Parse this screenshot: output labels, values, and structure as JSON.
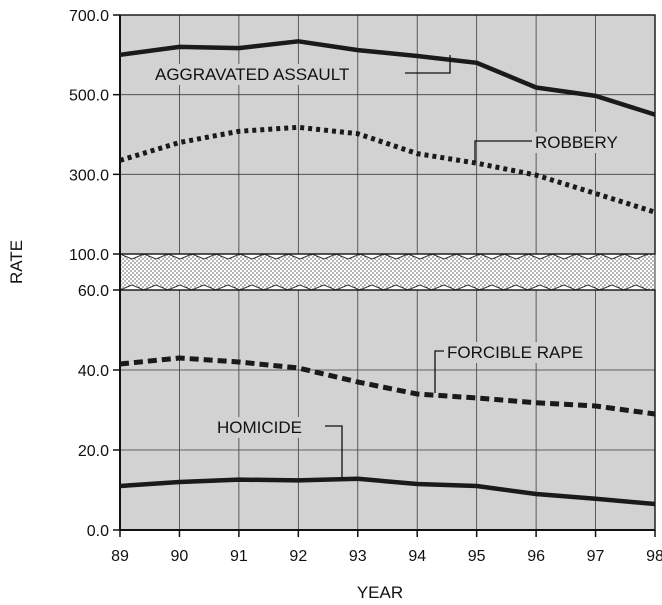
{
  "chart_data": {
    "type": "line",
    "xlabel": "YEAR",
    "ylabel": "RATE",
    "x": [
      "89",
      "90",
      "91",
      "92",
      "93",
      "94",
      "95",
      "96",
      "97",
      "98"
    ],
    "x_numeric": [
      89,
      90,
      91,
      92,
      93,
      94,
      95,
      96,
      97,
      98
    ],
    "grid": true,
    "background_color": "#d2d2d2",
    "line_color": "#1a1a1a",
    "panels": [
      {
        "name": "upper",
        "ylim": [
          100,
          700
        ],
        "yticks": [
          100,
          300,
          500,
          700
        ],
        "ytick_labels": [
          "100.0",
          "300.0",
          "500.0",
          "700.0"
        ],
        "series": [
          {
            "name": "AGGRAVATED ASSAULT",
            "style": "solid",
            "x": [
              89,
              90,
              91,
              92,
              93,
              94,
              95,
              96,
              97,
              98
            ],
            "values": [
              600,
              620,
              617,
              634,
              612,
              597,
              580,
              518,
              497,
              450
            ]
          },
          {
            "name": "ROBBERY",
            "style": "dotted",
            "x": [
              89,
              90,
              91,
              92,
              93,
              94,
              95,
              96,
              97,
              98
            ],
            "values": [
              335,
              380,
              408,
              418,
              402,
              352,
              328,
              298,
              252,
              205
            ]
          }
        ]
      },
      {
        "name": "lower",
        "ylim": [
          0,
          60
        ],
        "yticks": [
          0,
          20,
          40,
          60
        ],
        "ytick_labels": [
          "0.0",
          "20.0",
          "40.0",
          "60.0"
        ],
        "series": [
          {
            "name": "FORCIBLE RAPE",
            "style": "dashed",
            "x": [
              89,
              90,
              91,
              92,
              93,
              94,
              95,
              96,
              97,
              98
            ],
            "values": [
              41.5,
              43,
              42,
              40.5,
              37,
              34,
              33,
              31.8,
              31,
              29
            ]
          },
          {
            "name": "HOMICIDE",
            "style": "solid",
            "x": [
              89,
              90,
              91,
              92,
              93,
              94,
              95,
              96,
              97,
              98
            ],
            "values": [
              11,
              12,
              12.6,
              12.4,
              12.8,
              11.5,
              11,
              9,
              7.8,
              6.5
            ]
          }
        ]
      }
    ]
  }
}
